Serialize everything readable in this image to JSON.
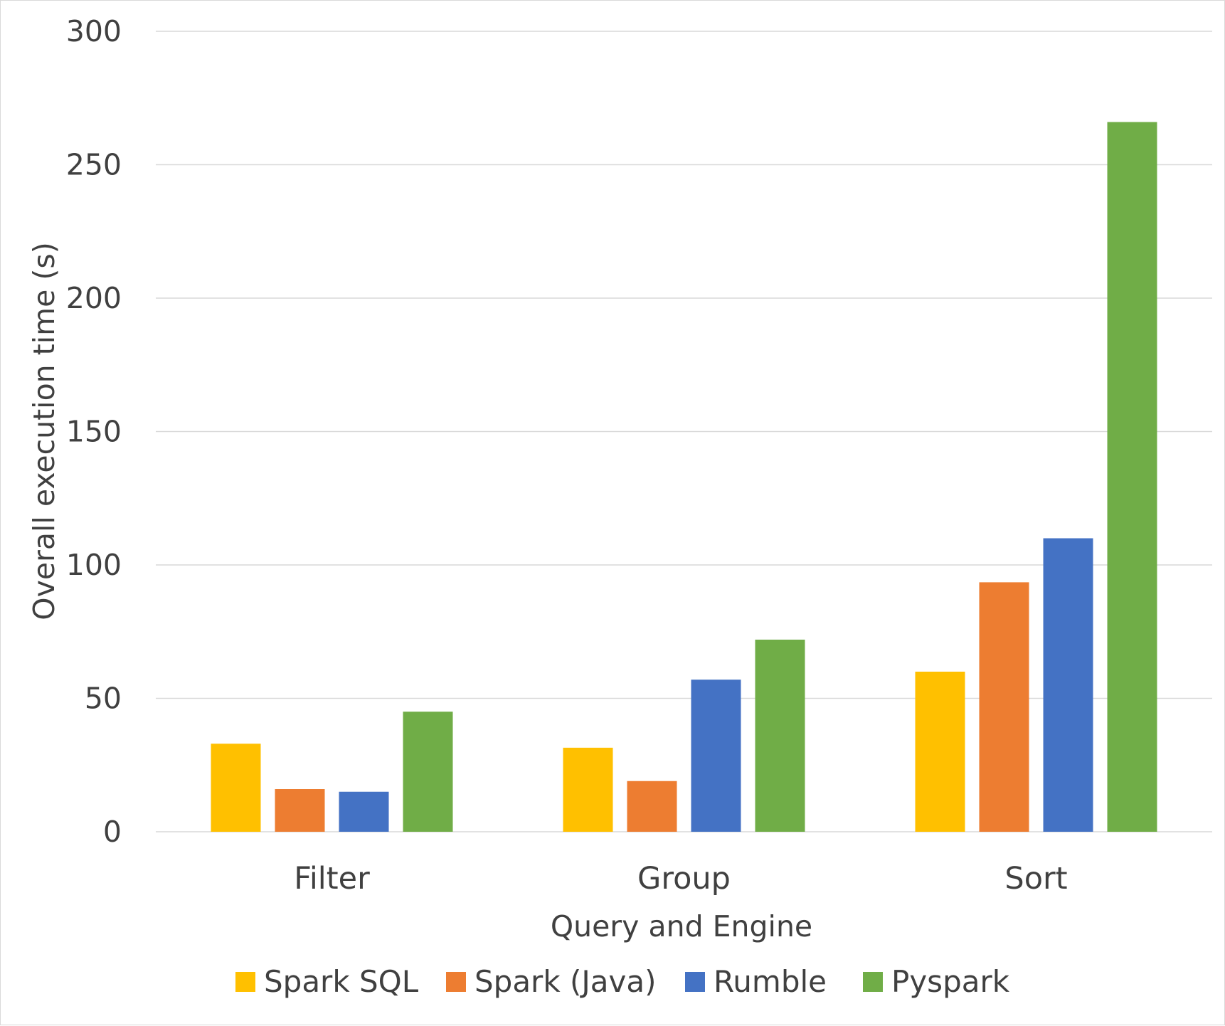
{
  "chart_data": {
    "type": "bar",
    "title": "",
    "xlabel": "Query and Engine",
    "ylabel": "Overall execution time (s)",
    "categories": [
      "Filter",
      "Group",
      "Sort"
    ],
    "ylim": [
      0,
      300
    ],
    "yticks": [
      0,
      50,
      100,
      150,
      200,
      250,
      300
    ],
    "grid": true,
    "legend_position": "bottom",
    "series": [
      {
        "name": "Spark SQL",
        "color": "#FFC000",
        "values": [
          33,
          31.5,
          60
        ]
      },
      {
        "name": "Spark (Java)",
        "color": "#ED7D31",
        "values": [
          16,
          19,
          93.5
        ]
      },
      {
        "name": "Rumble",
        "color": "#4472C4",
        "values": [
          15,
          57,
          110
        ]
      },
      {
        "name": "Pyspark",
        "color": "#70AD47",
        "values": [
          45,
          72,
          266
        ]
      }
    ]
  }
}
